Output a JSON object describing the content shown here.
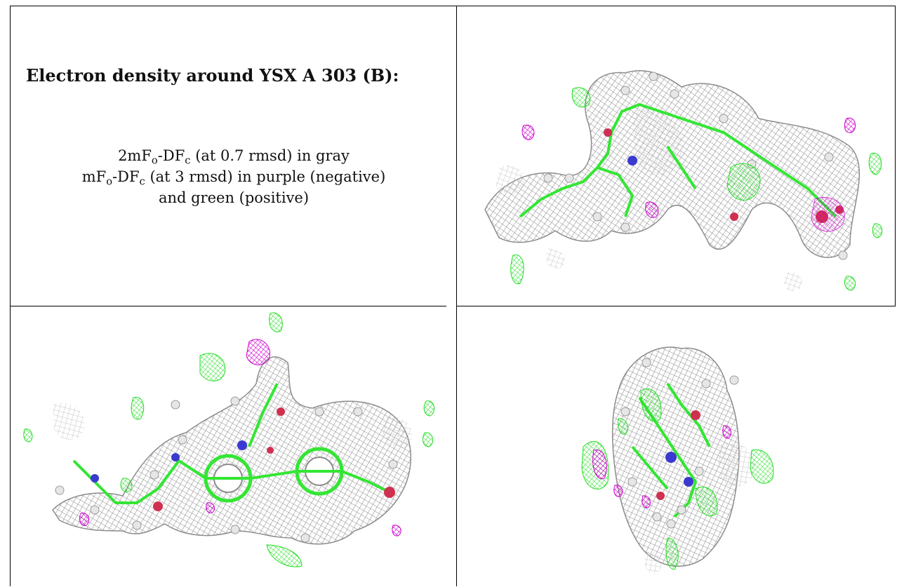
{
  "caption": {
    "title": "Electron density around YSX A 303 (B):",
    "line1": {
      "prefix": "2mF",
      "sub1": "o",
      "mid": "-DF",
      "sub2": "c",
      "suffix": " (at 0.7 rmsd) in gray"
    },
    "line2": {
      "prefix": "mF",
      "sub1": "o",
      "mid": "-DF",
      "sub2": "c",
      "suffix": " (at 3 rmsd) in purple (negative)"
    },
    "line3": "and green (positive)"
  },
  "colors": {
    "mesh_gray": "#8c8c8c",
    "mesh_light": "#c4c4c4",
    "bond_green": "#33e633",
    "positive_green": "#22dd22",
    "negative_purple": "#cc00cc",
    "nitrogen_blue": "#3a3ad0",
    "oxygen_red": "#d03050",
    "hydrogen_white": "#e6e6e6"
  },
  "panels": [
    {
      "view": "top-right",
      "icon": "density-view-1"
    },
    {
      "view": "bottom-left",
      "icon": "density-view-2"
    },
    {
      "view": "bottom-right",
      "icon": "density-view-3"
    }
  ]
}
